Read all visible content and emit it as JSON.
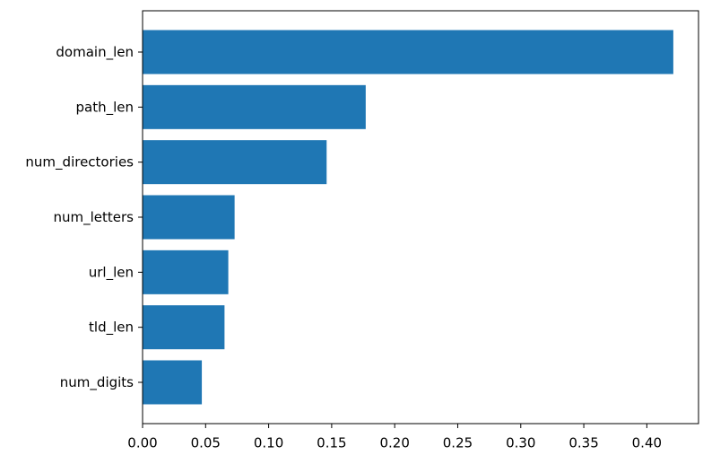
{
  "chart_data": {
    "type": "bar",
    "orientation": "horizontal",
    "categories": [
      "domain_len",
      "path_len",
      "num_directories",
      "num_letters",
      "url_len",
      "tld_len",
      "num_digits"
    ],
    "values": [
      0.421,
      0.177,
      0.146,
      0.073,
      0.068,
      0.065,
      0.047
    ],
    "x_ticks": [
      "0.00",
      "0.05",
      "0.10",
      "0.15",
      "0.20",
      "0.25",
      "0.30",
      "0.35",
      "0.40"
    ],
    "xlim": [
      0.0,
      0.441
    ],
    "title": "",
    "xlabel": "",
    "ylabel": "",
    "grid": false,
    "bar_color": "#1f77b4"
  }
}
